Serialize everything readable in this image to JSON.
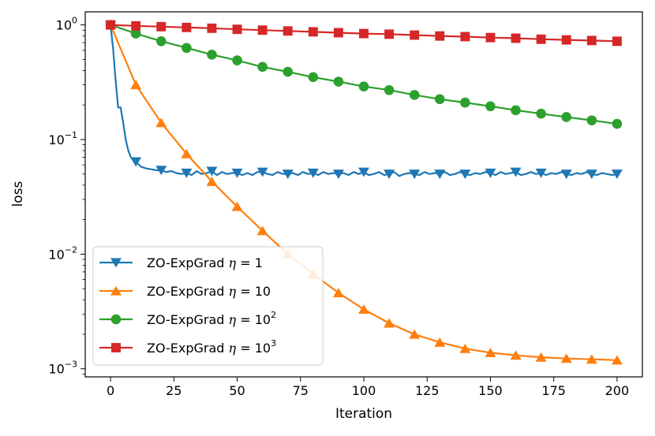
{
  "chart_data": {
    "type": "line",
    "title": "",
    "xlabel": "Iteration",
    "ylabel": "loss",
    "xlim": [
      -10,
      210
    ],
    "ylim": [
      0.00085,
      1.3
    ],
    "yscale": "log",
    "grid": false,
    "legend_position": "lower-left",
    "xticks": [
      0,
      25,
      50,
      75,
      100,
      125,
      150,
      175,
      200
    ],
    "yticks": [
      {
        "value": 1,
        "base": "10",
        "exp": "0"
      },
      {
        "value": 0.1,
        "base": "10",
        "exp": "−1"
      },
      {
        "value": 0.01,
        "base": "10",
        "exp": "−2"
      },
      {
        "value": 0.001,
        "base": "10",
        "exp": "−3"
      }
    ],
    "series": [
      {
        "label_prefix": "ZO-ExpGrad ",
        "label_eta": "η",
        "label_eq": " = ",
        "label_base": "1",
        "label_exp": "",
        "color": "#1f77b4",
        "marker": "triangle-down",
        "line": [
          [
            0,
            1.0
          ],
          [
            1,
            0.62
          ],
          [
            2,
            0.33
          ],
          [
            3,
            0.19
          ],
          [
            4,
            0.19
          ],
          [
            5,
            0.14
          ],
          [
            6,
            0.1
          ],
          [
            7,
            0.08
          ],
          [
            8,
            0.07
          ],
          [
            9,
            0.066
          ],
          [
            10,
            0.064
          ],
          [
            12,
            0.058
          ],
          [
            14,
            0.056
          ],
          [
            16,
            0.055
          ],
          [
            18,
            0.054
          ],
          [
            20,
            0.054
          ],
          [
            22,
            0.052
          ],
          [
            24,
            0.053
          ],
          [
            26,
            0.051
          ],
          [
            28,
            0.05
          ],
          [
            30,
            0.051
          ],
          [
            32,
            0.049
          ],
          [
            34,
            0.053
          ],
          [
            36,
            0.05
          ],
          [
            38,
            0.051
          ],
          [
            40,
            0.053
          ],
          [
            42,
            0.049
          ],
          [
            44,
            0.052
          ],
          [
            46,
            0.05
          ],
          [
            48,
            0.051
          ],
          [
            50,
            0.051
          ],
          [
            52,
            0.049
          ],
          [
            54,
            0.051
          ],
          [
            56,
            0.049
          ],
          [
            58,
            0.052
          ],
          [
            60,
            0.052
          ],
          [
            62,
            0.05
          ],
          [
            64,
            0.049
          ],
          [
            66,
            0.052
          ],
          [
            68,
            0.05
          ],
          [
            70,
            0.05
          ],
          [
            72,
            0.051
          ],
          [
            74,
            0.049
          ],
          [
            76,
            0.052
          ],
          [
            78,
            0.05
          ],
          [
            80,
            0.051
          ],
          [
            82,
            0.049
          ],
          [
            84,
            0.052
          ],
          [
            86,
            0.05
          ],
          [
            88,
            0.051
          ],
          [
            90,
            0.05
          ],
          [
            92,
            0.051
          ],
          [
            94,
            0.049
          ],
          [
            96,
            0.052
          ],
          [
            98,
            0.05
          ],
          [
            100,
            0.052
          ],
          [
            102,
            0.049
          ],
          [
            104,
            0.05
          ],
          [
            106,
            0.052
          ],
          [
            108,
            0.049
          ],
          [
            110,
            0.05
          ],
          [
            112,
            0.052
          ],
          [
            114,
            0.048
          ],
          [
            116,
            0.05
          ],
          [
            118,
            0.051
          ],
          [
            120,
            0.05
          ],
          [
            122,
            0.049
          ],
          [
            124,
            0.052
          ],
          [
            126,
            0.05
          ],
          [
            128,
            0.051
          ],
          [
            130,
            0.05
          ],
          [
            132,
            0.052
          ],
          [
            134,
            0.049
          ],
          [
            136,
            0.05
          ],
          [
            138,
            0.052
          ],
          [
            140,
            0.05
          ],
          [
            142,
            0.049
          ],
          [
            144,
            0.051
          ],
          [
            146,
            0.05
          ],
          [
            148,
            0.052
          ],
          [
            150,
            0.051
          ],
          [
            152,
            0.049
          ],
          [
            154,
            0.052
          ],
          [
            156,
            0.05
          ],
          [
            158,
            0.051
          ],
          [
            160,
            0.052
          ],
          [
            162,
            0.049
          ],
          [
            164,
            0.05
          ],
          [
            166,
            0.052
          ],
          [
            168,
            0.05
          ],
          [
            170,
            0.051
          ],
          [
            172,
            0.049
          ],
          [
            174,
            0.051
          ],
          [
            176,
            0.05
          ],
          [
            178,
            0.052
          ],
          [
            180,
            0.05
          ],
          [
            182,
            0.049
          ],
          [
            184,
            0.051
          ],
          [
            186,
            0.05
          ],
          [
            188,
            0.052
          ],
          [
            190,
            0.05
          ],
          [
            192,
            0.049
          ],
          [
            194,
            0.051
          ],
          [
            196,
            0.05
          ],
          [
            198,
            0.049
          ],
          [
            200,
            0.05
          ]
        ],
        "markers": [
          [
            0,
            1.0
          ],
          [
            10,
            0.064
          ],
          [
            20,
            0.054
          ],
          [
            30,
            0.051
          ],
          [
            40,
            0.053
          ],
          [
            50,
            0.051
          ],
          [
            60,
            0.052
          ],
          [
            70,
            0.05
          ],
          [
            80,
            0.051
          ],
          [
            90,
            0.05
          ],
          [
            100,
            0.052
          ],
          [
            110,
            0.05
          ],
          [
            120,
            0.05
          ],
          [
            130,
            0.05
          ],
          [
            140,
            0.05
          ],
          [
            150,
            0.051
          ],
          [
            160,
            0.052
          ],
          [
            170,
            0.051
          ],
          [
            180,
            0.05
          ],
          [
            190,
            0.05
          ],
          [
            200,
            0.05
          ]
        ]
      },
      {
        "label_prefix": "ZO-ExpGrad ",
        "label_eta": "η",
        "label_eq": " = ",
        "label_base": "10",
        "label_exp": "",
        "color": "#ff7f0e",
        "marker": "triangle-up",
        "markers": [
          [
            0,
            1.0
          ],
          [
            10,
            0.3
          ],
          [
            20,
            0.14
          ],
          [
            30,
            0.075
          ],
          [
            40,
            0.043
          ],
          [
            50,
            0.026
          ],
          [
            60,
            0.016
          ],
          [
            70,
            0.01
          ],
          [
            80,
            0.0067
          ],
          [
            90,
            0.0046
          ],
          [
            100,
            0.0033
          ],
          [
            110,
            0.0025
          ],
          [
            120,
            0.002
          ],
          [
            130,
            0.0017
          ],
          [
            140,
            0.0015
          ],
          [
            150,
            0.00138
          ],
          [
            160,
            0.00131
          ],
          [
            170,
            0.00126
          ],
          [
            180,
            0.00123
          ],
          [
            190,
            0.00121
          ],
          [
            200,
            0.00119
          ]
        ]
      },
      {
        "label_prefix": "ZO-ExpGrad ",
        "label_eta": "η",
        "label_eq": " = ",
        "label_base": "10",
        "label_exp": "2",
        "color": "#2ca02c",
        "marker": "circle",
        "markers": [
          [
            0,
            1.0
          ],
          [
            10,
            0.84
          ],
          [
            20,
            0.72
          ],
          [
            30,
            0.63
          ],
          [
            40,
            0.55
          ],
          [
            50,
            0.49
          ],
          [
            60,
            0.43
          ],
          [
            70,
            0.39
          ],
          [
            80,
            0.35
          ],
          [
            90,
            0.32
          ],
          [
            100,
            0.29
          ],
          [
            110,
            0.27
          ],
          [
            120,
            0.245
          ],
          [
            130,
            0.225
          ],
          [
            140,
            0.21
          ],
          [
            150,
            0.195
          ],
          [
            160,
            0.18
          ],
          [
            170,
            0.168
          ],
          [
            180,
            0.157
          ],
          [
            190,
            0.147
          ],
          [
            200,
            0.137
          ]
        ]
      },
      {
        "label_prefix": "ZO-ExpGrad ",
        "label_eta": "η",
        "label_eq": " = ",
        "label_base": "10",
        "label_exp": "3",
        "color": "#d62728",
        "marker": "square",
        "markers": [
          [
            0,
            1.0
          ],
          [
            10,
            0.98
          ],
          [
            20,
            0.965
          ],
          [
            30,
            0.95
          ],
          [
            40,
            0.935
          ],
          [
            50,
            0.915
          ],
          [
            60,
            0.9
          ],
          [
            70,
            0.885
          ],
          [
            80,
            0.87
          ],
          [
            90,
            0.855
          ],
          [
            100,
            0.84
          ],
          [
            110,
            0.83
          ],
          [
            120,
            0.815
          ],
          [
            130,
            0.8
          ],
          [
            140,
            0.79
          ],
          [
            150,
            0.775
          ],
          [
            160,
            0.765
          ],
          [
            170,
            0.75
          ],
          [
            180,
            0.74
          ],
          [
            190,
            0.73
          ],
          [
            200,
            0.72
          ]
        ]
      }
    ]
  }
}
